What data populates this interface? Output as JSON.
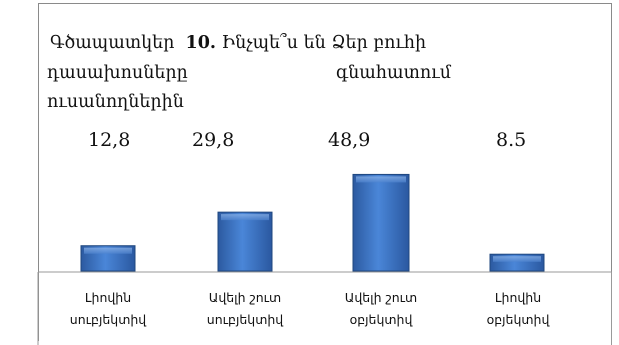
{
  "chart_data": {
    "type": "bar",
    "title_label": "Գծապատկեր",
    "title_number": "10.",
    "title_lines": [
      "Ինչպե՞ս են Ձեր բուհի",
      "դասախոսները",
      "գնահատում",
      "ուսանողներին"
    ],
    "categories": [
      "Լիովին սուբյեկտիվ",
      "Ավելի շուտ սուբյեկտիվ",
      "Ավելի շուտ օբյեկտիվ",
      "Լիովին օբյեկտիվ"
    ],
    "category_lines": [
      [
        "Լիովին",
        "սուբյեկտիվ"
      ],
      [
        "Ավելի շուտ",
        "սուբյեկտիվ"
      ],
      [
        "Ավելի շուտ",
        "օբյեկտիվ"
      ],
      [
        "Լիովին",
        "օբյեկտիվ"
      ]
    ],
    "values": [
      12.8,
      29.8,
      48.9,
      8.5
    ],
    "value_labels": [
      "12,8",
      "29,8",
      "48,9",
      "8.5"
    ],
    "bar_color": "#3a6fbf",
    "grid": false,
    "legend": "none"
  }
}
